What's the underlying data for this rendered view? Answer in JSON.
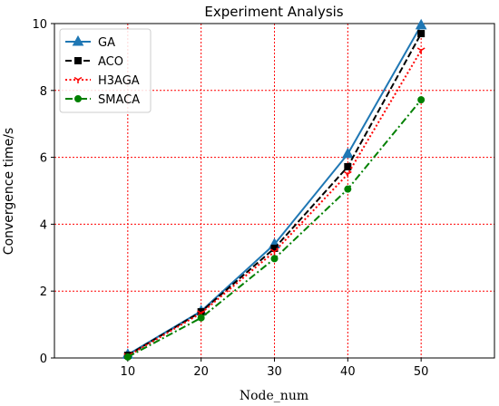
{
  "chart_data": {
    "type": "line",
    "title": "Experiment Analysis",
    "xlabel": "Node_num",
    "ylabel": "Convergence time/s",
    "x": [
      10,
      20,
      30,
      40,
      50
    ],
    "xlim": [
      0,
      60
    ],
    "ylim": [
      0,
      10
    ],
    "xticks": [
      10,
      20,
      30,
      40,
      50
    ],
    "yticks": [
      0,
      2,
      4,
      6,
      8,
      10
    ],
    "grid": true,
    "grid_color": "#ff0000",
    "legend_position": "top-left",
    "series": [
      {
        "name": "GA",
        "values": [
          0.1,
          1.4,
          3.4,
          6.1,
          9.95
        ],
        "color": "#1f77b4",
        "dash": "solid",
        "marker": "triangle"
      },
      {
        "name": "ACO",
        "values": [
          0.08,
          1.38,
          3.28,
          5.72,
          9.7
        ],
        "color": "#000000",
        "dash": "dashed",
        "marker": "square"
      },
      {
        "name": "H3AGA",
        "values": [
          0.06,
          1.34,
          3.18,
          5.5,
          9.2
        ],
        "color": "#ff0000",
        "dash": "dotted",
        "marker": "tri_down"
      },
      {
        "name": "SMACA",
        "values": [
          0.03,
          1.2,
          2.97,
          5.05,
          7.72
        ],
        "color": "#008000",
        "dash": "dashdot",
        "marker": "circle"
      }
    ]
  }
}
